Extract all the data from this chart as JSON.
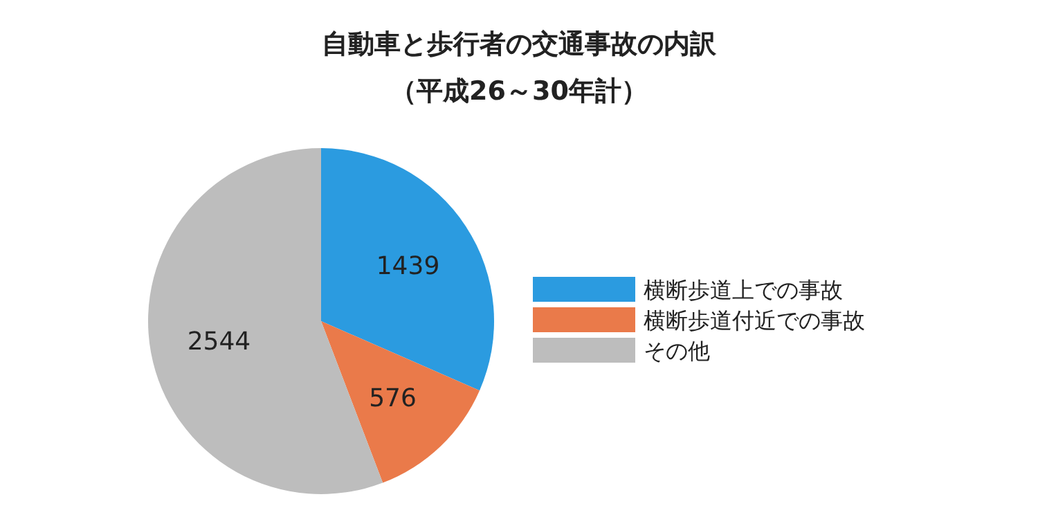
{
  "chart_data": {
    "type": "pie",
    "title": "自動車と歩行者の交通事故の内訳",
    "subtitle": "（平成26～30年計）",
    "categories": [
      "横断歩道上での事故",
      "横断歩道付近での事故",
      "その他"
    ],
    "values": [
      1439,
      576,
      2544
    ],
    "colors": [
      "#2b9be0",
      "#ea7a4a",
      "#bdbdbd"
    ],
    "data_labels": true,
    "legend": "right"
  }
}
